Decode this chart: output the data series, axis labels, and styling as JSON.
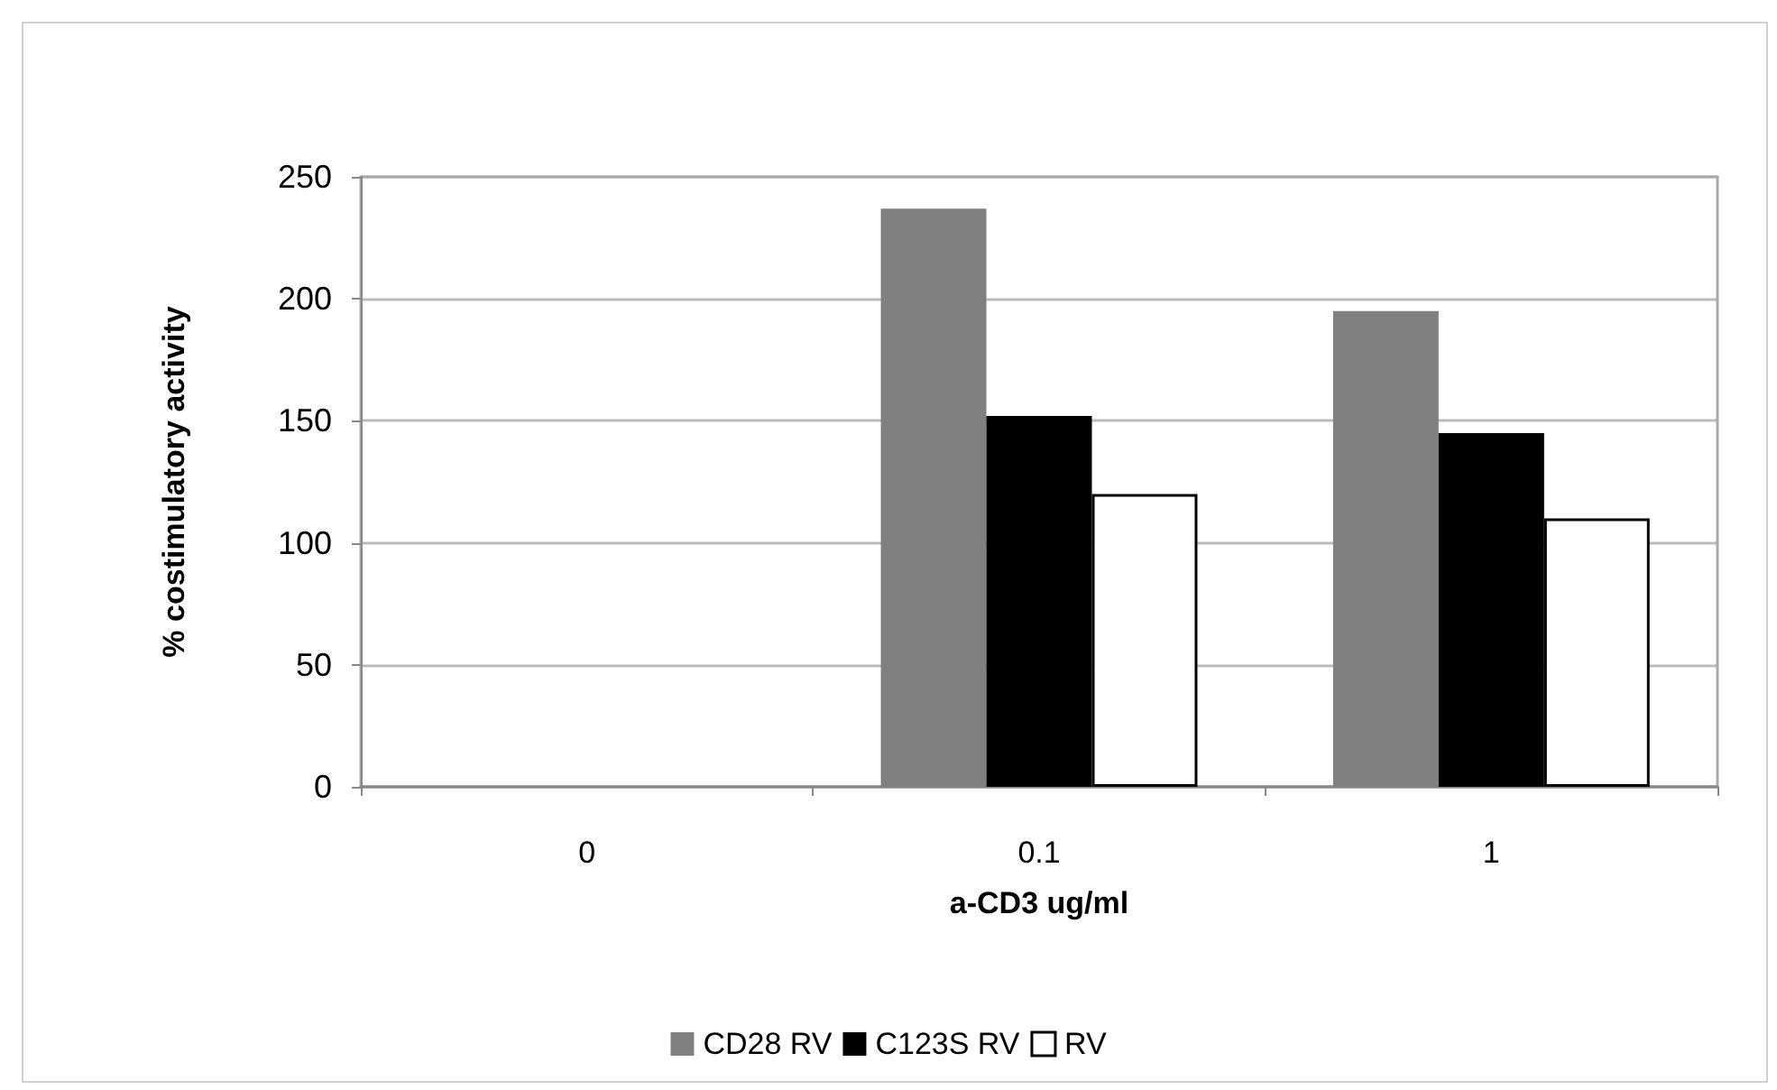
{
  "chart_data": {
    "type": "bar",
    "xlabel": "a-CD3 ug/ml",
    "ylabel": "% costimulatory activity",
    "categories": [
      "0",
      "0.1",
      "1"
    ],
    "series": [
      {
        "name": "CD28 RV",
        "color": "#808080",
        "values": [
          null,
          237,
          195
        ]
      },
      {
        "name": "C123S RV",
        "color": "#000000",
        "values": [
          null,
          152,
          145
        ]
      },
      {
        "name": "RV",
        "color": "#ffffff",
        "values": [
          null,
          120,
          110
        ]
      }
    ],
    "ylim": [
      0,
      250
    ],
    "yticks": [
      0,
      50,
      100,
      150,
      200,
      250
    ],
    "grid": "y",
    "legend": "bottom"
  }
}
